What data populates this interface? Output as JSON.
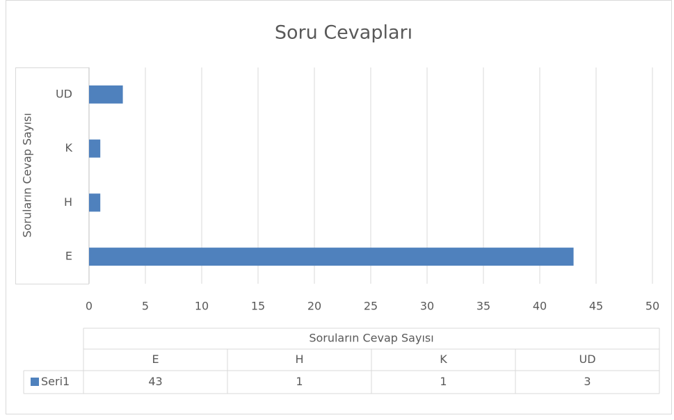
{
  "chart_data": {
    "type": "barh",
    "title": "Soru Cevapları",
    "y_label": "Soruların Cevap Sayısı",
    "categories": [
      "E",
      "H",
      "K",
      "UD"
    ],
    "series": [
      {
        "name": "Seri1",
        "color": "#4f81bd",
        "values": [
          43,
          1,
          1,
          3
        ]
      }
    ],
    "xlim": [
      0,
      50
    ],
    "xticks": [
      0,
      5,
      10,
      15,
      20,
      25,
      30,
      35,
      40,
      45,
      50
    ],
    "grid": true,
    "data_table": true
  }
}
